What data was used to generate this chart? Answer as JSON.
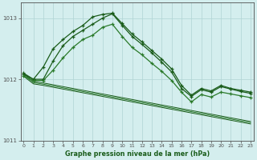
{
  "title": "Graphe pression niveau de la mer (hPa)",
  "hours": [
    0,
    1,
    2,
    3,
    4,
    5,
    6,
    7,
    8,
    9,
    10,
    11,
    12,
    13,
    14,
    15,
    16,
    17,
    18,
    19,
    20,
    21,
    22,
    23
  ],
  "line_A": [
    1012.1,
    1012.0,
    1012.0,
    1012.3,
    1012.55,
    1012.7,
    1012.8,
    1012.9,
    1013.0,
    1013.07,
    1012.88,
    1012.7,
    1012.57,
    1012.43,
    1012.28,
    1012.12,
    1011.85,
    1011.72,
    1011.83,
    1011.79,
    1011.88,
    1011.84,
    1011.8,
    1011.77
  ],
  "line_B": [
    1012.08,
    1012.0,
    1012.2,
    1012.5,
    1012.65,
    1012.78,
    1012.88,
    1013.02,
    1013.06,
    1013.08,
    1012.91,
    1012.74,
    1012.61,
    1012.47,
    1012.33,
    1012.17,
    1011.9,
    1011.74,
    1011.85,
    1011.81,
    1011.9,
    1011.85,
    1011.82,
    1011.79
  ],
  "line_C": [
    1012.05,
    1011.98,
    1011.98,
    1012.15,
    1012.35,
    1012.52,
    1012.65,
    1012.72,
    1012.85,
    1012.9,
    1012.7,
    1012.52,
    1012.4,
    1012.26,
    1012.13,
    1011.98,
    1011.79,
    1011.63,
    1011.75,
    1011.71,
    1011.79,
    1011.76,
    1011.73,
    1011.7
  ],
  "trend1": [
    1012.09,
    1011.965,
    1011.94,
    1011.91,
    1011.88,
    1011.85,
    1011.82,
    1011.79,
    1011.76,
    1011.73,
    1011.7,
    1011.67,
    1011.64,
    1011.61,
    1011.58,
    1011.55,
    1011.52,
    1011.49,
    1011.46,
    1011.43,
    1011.4,
    1011.37,
    1011.34,
    1011.31
  ],
  "trend2": [
    1012.07,
    1011.945,
    1011.92,
    1011.89,
    1011.86,
    1011.83,
    1011.8,
    1011.77,
    1011.74,
    1011.71,
    1011.68,
    1011.65,
    1011.62,
    1011.59,
    1011.56,
    1011.53,
    1011.5,
    1011.47,
    1011.44,
    1011.41,
    1011.38,
    1011.35,
    1011.32,
    1011.29
  ],
  "trend3": [
    1012.05,
    1011.925,
    1011.9,
    1011.87,
    1011.84,
    1011.81,
    1011.78,
    1011.75,
    1011.72,
    1011.69,
    1011.66,
    1011.63,
    1011.6,
    1011.57,
    1011.54,
    1011.51,
    1011.48,
    1011.45,
    1011.42,
    1011.39,
    1011.36,
    1011.33,
    1011.3,
    1011.27
  ],
  "bg_color": "#d4eeee",
  "grid_color": "#b0d4d4",
  "line_color_dark": "#1a5c1a",
  "line_color_mid": "#2a7a2a",
  "axis_color": "#505050",
  "label_color": "#1a5c1a",
  "ylim": [
    1011.0,
    1013.25
  ],
  "yticks": [
    1011,
    1012,
    1013
  ],
  "title_fontsize": 5.8,
  "tick_fontsize": 5.0
}
